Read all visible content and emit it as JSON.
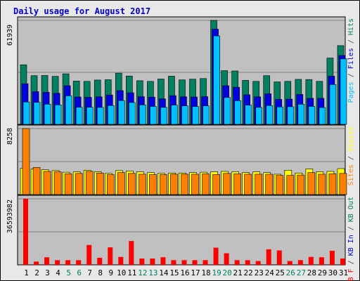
{
  "chart_data": {
    "type": "bar",
    "title": "Daily usage for August 2017",
    "colors": {
      "title": "#0000cc",
      "frame_bg": "#e8e8e8",
      "panel_bg": "#c0c0c0",
      "grid": "#808080",
      "hits": "#008060",
      "files": "#0000e0",
      "pages": "#00c0ff",
      "visits": "#ffff00",
      "sites": "#ff8000",
      "kb_f": "#ff0000",
      "kb_in": "#0000c0",
      "kb_out": "#008060",
      "weekday_label": "#000000",
      "weekend_label": "#008060"
    },
    "categories": [
      "1",
      "2",
      "3",
      "4",
      "5",
      "6",
      "7",
      "8",
      "9",
      "10",
      "11",
      "12",
      "13",
      "14",
      "15",
      "16",
      "17",
      "18",
      "19",
      "20",
      "21",
      "22",
      "23",
      "24",
      "25",
      "26",
      "27",
      "28",
      "29",
      "30",
      "31"
    ],
    "weekend_days": [
      5,
      6,
      12,
      13,
      19,
      20,
      26,
      27
    ],
    "panels": [
      {
        "id": "requests",
        "ymax_label": "61939",
        "ymax": 61939,
        "legend": [
          {
            "text": "Pages",
            "color": "#00c0ff"
          },
          {
            "text": " / ",
            "color": "#404040"
          },
          {
            "text": "Files",
            "color": "#0000e0"
          },
          {
            "text": " / ",
            "color": "#404040"
          },
          {
            "text": "Hits",
            "color": "#008060"
          }
        ],
        "series": [
          {
            "name": "Hits",
            "color": "#008060",
            "values": [
              35500,
              29000,
              29100,
              28600,
              30100,
              25800,
              25600,
              26400,
              26600,
              30500,
              28800,
              26000,
              25600,
              27000,
              28700,
              26500,
              26900,
              27300,
              61939,
              32000,
              31800,
              26200,
              25600,
              29000,
              25300,
              25600,
              26800,
              26700,
              25600,
              39500,
              46900
            ]
          },
          {
            "name": "Files",
            "color": "#0000e0",
            "values": [
              24200,
              19500,
              19100,
              18500,
              23000,
              16300,
              16100,
              16400,
              17500,
              20100,
              18800,
              16500,
              16200,
              15200,
              17100,
              16400,
              16300,
              16500,
              56700,
              23000,
              22100,
              17600,
              16400,
              18200,
              14900,
              15000,
              17800,
              15500,
              15500,
              28700,
              41000
            ]
          },
          {
            "name": "Pages",
            "color": "#00c0ff",
            "values": [
              13300,
              13100,
              12000,
              11600,
              17000,
              10200,
              10200,
              10100,
              11200,
              14200,
              13000,
              11600,
              10700,
              10100,
              11500,
              11000,
              10600,
              11000,
              52700,
              16000,
              14100,
              11400,
              10100,
              11200,
              10400,
              10500,
              12000,
              10700,
              10000,
              23700,
              39000
            ]
          }
        ]
      },
      {
        "id": "visitors",
        "ymax_label": "8258",
        "ymax": 8258,
        "legend": [
          {
            "text": "Sites",
            "color": "#ff8000"
          },
          {
            "text": " / ",
            "color": "#404040"
          },
          {
            "text": "Visits",
            "color": "#ffff00"
          }
        ],
        "series": [
          {
            "name": "Visits",
            "color": "#ffff00",
            "values": [
              3300,
              3200,
              3100,
              3000,
              2800,
              2850,
              3050,
              2850,
              2650,
              3000,
              2950,
              2850,
              2750,
              2650,
              2700,
              2700,
              2750,
              2800,
              2850,
              2900,
              2850,
              2750,
              2850,
              2750,
              2550,
              3050,
              2700,
              3200,
              2850,
              2900,
              3250
            ]
          },
          {
            "name": "Sites",
            "color": "#ff8000",
            "values": [
              8258,
              3400,
              2900,
              2850,
              2600,
              2650,
              2900,
              2700,
              2500,
              2750,
              2650,
              2550,
              2500,
              2500,
              2550,
              2550,
              2550,
              2600,
              2500,
              2650,
              2600,
              2550,
              2550,
              2550,
              2400,
              2400,
              2450,
              2750,
              2550,
              2600,
              2650
            ]
          }
        ]
      },
      {
        "id": "traffic",
        "ymax_label": "36593982",
        "ymax": 36593982,
        "legend": [
          {
            "text": "KB F",
            "color": "#ff0000"
          },
          {
            "text": " / ",
            "color": "#404040"
          },
          {
            "text": "KB In",
            "color": "#0000c0"
          },
          {
            "text": " / ",
            "color": "#404040"
          },
          {
            "text": "KB Out",
            "color": "#008060"
          }
        ],
        "series": [
          {
            "name": "KB F",
            "color": "#ff0000",
            "values": [
              36593982,
              1800000,
              4200000,
              2600000,
              2600000,
              2600000,
              11000000,
              3900000,
              9700000,
              4400000,
              13200000,
              3500000,
              3500000,
              4200000,
              2600000,
              2600000,
              2600000,
              2600000,
              9500000,
              6400000,
              2600000,
              2600000,
              2100000,
              8600000,
              8000000,
              2100000,
              2600000,
              4400000,
              4200000,
              7800000,
              3500000
            ]
          }
        ]
      }
    ]
  }
}
